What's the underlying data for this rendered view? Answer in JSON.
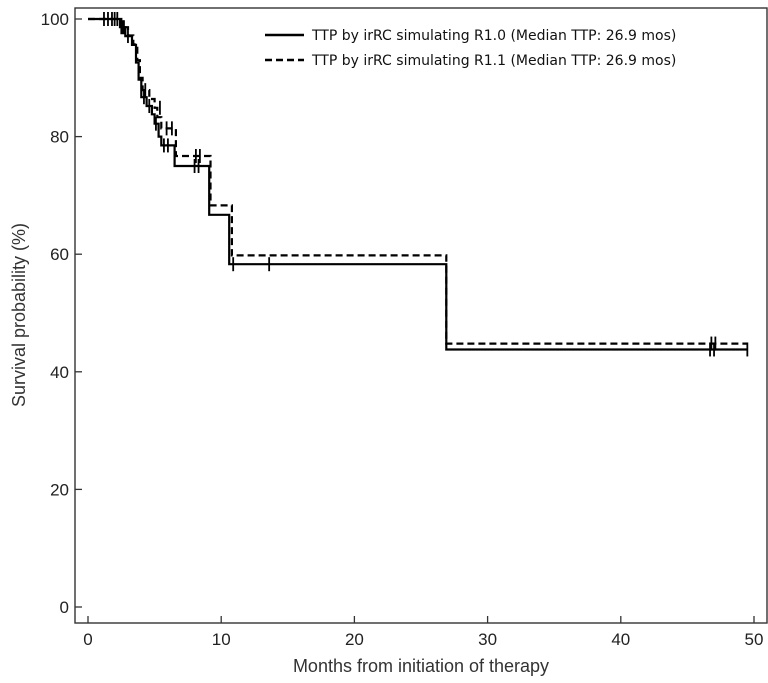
{
  "chart_data": {
    "type": "line",
    "xlabel": "Months from initiation of therapy",
    "ylabel": "Survival probability (%)",
    "xlim": [
      0,
      50
    ],
    "ylim": [
      0,
      100
    ],
    "xticks": [
      0,
      10,
      20,
      30,
      40,
      50
    ],
    "yticks": [
      0,
      20,
      40,
      60,
      80,
      100
    ],
    "grid": false,
    "legend_position": "top-right",
    "series": [
      {
        "name": "TTP by irRC simulating R1.0 (Median TTP: 26.9 mos)",
        "style": "solid",
        "color": "#000000",
        "steps": [
          [
            0,
            100
          ],
          [
            2.4,
            100
          ],
          [
            2.4,
            98.6
          ],
          [
            2.8,
            98.6
          ],
          [
            2.8,
            97.1
          ],
          [
            3.3,
            97.1
          ],
          [
            3.3,
            95.6
          ],
          [
            3.6,
            95.6
          ],
          [
            3.6,
            92.6
          ],
          [
            3.8,
            92.6
          ],
          [
            3.8,
            89.7
          ],
          [
            4.0,
            89.7
          ],
          [
            4.0,
            86.7
          ],
          [
            4.4,
            86.7
          ],
          [
            4.4,
            85.2
          ],
          [
            4.8,
            85.2
          ],
          [
            4.8,
            83.8
          ],
          [
            5.0,
            83.8
          ],
          [
            5.0,
            82.2
          ],
          [
            5.3,
            82.2
          ],
          [
            5.3,
            80.0
          ],
          [
            5.5,
            80.0
          ],
          [
            5.5,
            78.5
          ],
          [
            6.5,
            78.5
          ],
          [
            6.5,
            75.0
          ],
          [
            9.1,
            75.0
          ],
          [
            9.1,
            66.7
          ],
          [
            10.6,
            66.7
          ],
          [
            10.6,
            58.3
          ],
          [
            26.9,
            58.3
          ],
          [
            26.9,
            43.8
          ],
          [
            49.5,
            43.8
          ]
        ],
        "censored": [
          [
            1.2,
            100
          ],
          [
            1.5,
            100
          ],
          [
            1.8,
            100
          ],
          [
            2.0,
            100
          ],
          [
            2.2,
            100
          ],
          [
            2.5,
            98.6
          ],
          [
            2.6,
            98.6
          ],
          [
            3.0,
            97.1
          ],
          [
            4.2,
            86.7
          ],
          [
            4.6,
            85.2
          ],
          [
            5.1,
            82.2
          ],
          [
            5.7,
            78.5
          ],
          [
            6.0,
            78.5
          ],
          [
            8.0,
            75.0
          ],
          [
            8.3,
            75.0
          ],
          [
            10.9,
            58.3
          ],
          [
            13.6,
            58.3
          ],
          [
            46.7,
            43.8
          ],
          [
            47.0,
            43.8
          ],
          [
            49.5,
            43.8
          ]
        ]
      },
      {
        "name": "TTP by irRC simulating R1.1 (Median TTP: 26.9 mos)",
        "style": "dashed",
        "color": "#000000",
        "steps": [
          [
            0,
            100
          ],
          [
            2.5,
            100
          ],
          [
            2.5,
            98.6
          ],
          [
            3.0,
            98.6
          ],
          [
            3.0,
            97.2
          ],
          [
            3.4,
            97.2
          ],
          [
            3.4,
            95.7
          ],
          [
            3.7,
            95.7
          ],
          [
            3.7,
            93.0
          ],
          [
            3.9,
            93.0
          ],
          [
            3.9,
            90.0
          ],
          [
            4.1,
            90.0
          ],
          [
            4.1,
            87.9
          ],
          [
            4.6,
            87.9
          ],
          [
            4.6,
            86.4
          ],
          [
            5.0,
            86.4
          ],
          [
            5.0,
            84.9
          ],
          [
            5.2,
            84.9
          ],
          [
            5.2,
            83.3
          ],
          [
            5.5,
            83.3
          ],
          [
            5.5,
            81.4
          ],
          [
            6.6,
            81.4
          ],
          [
            6.6,
            76.7
          ],
          [
            9.2,
            76.7
          ],
          [
            9.2,
            68.3
          ],
          [
            10.8,
            68.3
          ],
          [
            10.8,
            59.8
          ],
          [
            26.9,
            59.8
          ],
          [
            26.9,
            44.8
          ],
          [
            49.5,
            44.8
          ]
        ],
        "censored": [
          [
            2.7,
            98.6
          ],
          [
            4.3,
            87.9
          ],
          [
            5.4,
            84.9
          ],
          [
            5.9,
            81.4
          ],
          [
            6.3,
            81.4
          ],
          [
            8.1,
            76.7
          ],
          [
            8.4,
            76.7
          ],
          [
            46.8,
            44.8
          ],
          [
            47.1,
            44.8
          ]
        ]
      }
    ]
  }
}
